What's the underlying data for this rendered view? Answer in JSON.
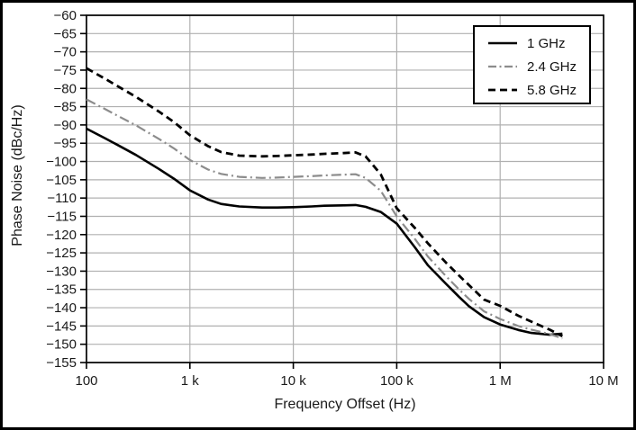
{
  "figure": {
    "background": "#ffffff",
    "border_color": "#000000",
    "gridline_color": "#b0b0b0",
    "frame_color": "#000000"
  },
  "chart_data": {
    "type": "line",
    "title": "",
    "xlabel": "Frequency Offset (Hz)",
    "ylabel": "Phase Noise (dBc/Hz)",
    "x_scale": "log",
    "x_range": [
      100,
      10000000
    ],
    "y_range": [
      -155,
      -60
    ],
    "grid": true,
    "x_ticks": [
      {
        "value": 100,
        "label": "100"
      },
      {
        "value": 1000,
        "label": "1 k"
      },
      {
        "value": 10000,
        "label": "10 k"
      },
      {
        "value": 100000,
        "label": "100 k"
      },
      {
        "value": 1000000,
        "label": "1 M"
      },
      {
        "value": 10000000,
        "label": "10 M"
      }
    ],
    "y_ticks": [
      {
        "value": -60,
        "label": "−60"
      },
      {
        "value": -65,
        "label": "−65"
      },
      {
        "value": -70,
        "label": "−70"
      },
      {
        "value": -75,
        "label": "−75"
      },
      {
        "value": -80,
        "label": "−80"
      },
      {
        "value": -85,
        "label": "−85"
      },
      {
        "value": -90,
        "label": "−90"
      },
      {
        "value": -95,
        "label": "−95"
      },
      {
        "value": -100,
        "label": "−100"
      },
      {
        "value": -105,
        "label": "−105"
      },
      {
        "value": -110,
        "label": "−110"
      },
      {
        "value": -115,
        "label": "−115"
      },
      {
        "value": -120,
        "label": "−120"
      },
      {
        "value": -125,
        "label": "−125"
      },
      {
        "value": -130,
        "label": "−130"
      },
      {
        "value": -135,
        "label": "−135"
      },
      {
        "value": -140,
        "label": "−140"
      },
      {
        "value": -145,
        "label": "−145"
      },
      {
        "value": -150,
        "label": "−150"
      },
      {
        "value": -155,
        "label": "−155"
      }
    ],
    "legend": {
      "position": "top-right",
      "entries": [
        "1 GHz",
        "2.4 GHz",
        "5.8 GHz"
      ]
    },
    "series": [
      {
        "name": "1 GHz",
        "color": "#000000",
        "style": "solid",
        "width": 2.6,
        "points": [
          [
            100,
            -91
          ],
          [
            150,
            -93.6
          ],
          [
            200,
            -95.5
          ],
          [
            300,
            -98.2
          ],
          [
            500,
            -102
          ],
          [
            700,
            -104.7
          ],
          [
            1000,
            -107.9
          ],
          [
            1500,
            -110.4
          ],
          [
            2000,
            -111.6
          ],
          [
            3000,
            -112.3
          ],
          [
            5000,
            -112.6
          ],
          [
            7000,
            -112.6
          ],
          [
            10000,
            -112.5
          ],
          [
            15000,
            -112.3
          ],
          [
            20000,
            -112.1
          ],
          [
            30000,
            -112.0
          ],
          [
            40000,
            -111.9
          ],
          [
            50000,
            -112.4
          ],
          [
            70000,
            -113.8
          ],
          [
            100000,
            -117
          ],
          [
            150000,
            -123.5
          ],
          [
            200000,
            -128.4
          ],
          [
            300000,
            -133.5
          ],
          [
            400000,
            -137
          ],
          [
            500000,
            -139.6
          ],
          [
            700000,
            -142.6
          ],
          [
            1000000,
            -144.6
          ],
          [
            1500000,
            -146.1
          ],
          [
            2000000,
            -146.9
          ],
          [
            3000000,
            -147.4
          ],
          [
            4000000,
            -147.1
          ]
        ]
      },
      {
        "name": "2.4 GHz",
        "color": "#8c8c8c",
        "style": "dash-dot",
        "width": 2.2,
        "points": [
          [
            100,
            -83
          ],
          [
            150,
            -85.6
          ],
          [
            200,
            -87.5
          ],
          [
            300,
            -90.1
          ],
          [
            500,
            -93.8
          ],
          [
            700,
            -96.4
          ],
          [
            1000,
            -99.6
          ],
          [
            1500,
            -102.2
          ],
          [
            2000,
            -103.4
          ],
          [
            3000,
            -104.2
          ],
          [
            5000,
            -104.5
          ],
          [
            7000,
            -104.4
          ],
          [
            10000,
            -104.2
          ],
          [
            15000,
            -104.0
          ],
          [
            20000,
            -103.8
          ],
          [
            30000,
            -103.6
          ],
          [
            40000,
            -103.5
          ],
          [
            50000,
            -104.5
          ],
          [
            70000,
            -108
          ],
          [
            100000,
            -115
          ],
          [
            150000,
            -121.2
          ],
          [
            200000,
            -126
          ],
          [
            300000,
            -131.4
          ],
          [
            400000,
            -135
          ],
          [
            500000,
            -137.6
          ],
          [
            700000,
            -141
          ],
          [
            1000000,
            -143.1
          ],
          [
            1500000,
            -145
          ],
          [
            2000000,
            -146
          ],
          [
            3000000,
            -147.2
          ],
          [
            4000000,
            -148.4
          ]
        ]
      },
      {
        "name": "5.8 GHz",
        "color": "#000000",
        "style": "dashed",
        "width": 2.8,
        "points": [
          [
            100,
            -74.5
          ],
          [
            150,
            -77.3
          ],
          [
            200,
            -79.4
          ],
          [
            300,
            -82.3
          ],
          [
            500,
            -86.3
          ],
          [
            700,
            -89.2
          ],
          [
            1000,
            -92.8
          ],
          [
            1500,
            -95.8
          ],
          [
            2000,
            -97.4
          ],
          [
            3000,
            -98.4
          ],
          [
            5000,
            -98.6
          ],
          [
            7000,
            -98.5
          ],
          [
            10000,
            -98.3
          ],
          [
            15000,
            -98.1
          ],
          [
            20000,
            -97.9
          ],
          [
            30000,
            -97.7
          ],
          [
            40000,
            -97.5
          ],
          [
            50000,
            -98.6
          ],
          [
            70000,
            -103.5
          ],
          [
            100000,
            -112.8
          ],
          [
            150000,
            -118.2
          ],
          [
            200000,
            -122.4
          ],
          [
            300000,
            -127.7
          ],
          [
            400000,
            -131.2
          ],
          [
            500000,
            -133.8
          ],
          [
            700000,
            -137.8
          ],
          [
            1000000,
            -139.5
          ],
          [
            1500000,
            -142.2
          ],
          [
            2000000,
            -143.8
          ],
          [
            3000000,
            -146
          ],
          [
            4000000,
            -147.8
          ]
        ]
      }
    ]
  }
}
